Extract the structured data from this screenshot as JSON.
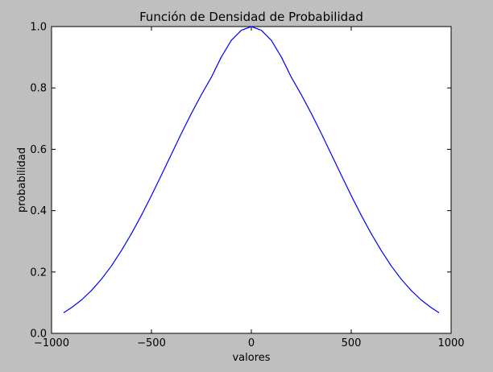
{
  "chart_data": {
    "type": "line",
    "title": "Función de Densidad de Probabilidad",
    "xlabel": "valores",
    "ylabel": "probabilidad",
    "xlim": [
      -1000,
      1000
    ],
    "ylim": [
      0.0,
      1.0
    ],
    "xticks": [
      -1000,
      -500,
      0,
      500,
      1000
    ],
    "xtick_labels": [
      "−1000",
      "−500",
      "0",
      "500",
      "1000"
    ],
    "yticks": [
      0.0,
      0.2,
      0.4,
      0.6,
      0.8,
      1.0
    ],
    "ytick_labels": [
      "0.0",
      "0.2",
      "0.4",
      "0.6",
      "0.8",
      "1.0"
    ],
    "grid": false,
    "legend": "none",
    "colors": {
      "background": "#bfbfbf",
      "plot_area": "#ffffff",
      "line": "#0000ff"
    },
    "series": [
      {
        "x": [
          -940,
          -900,
          -850,
          -800,
          -750,
          -700,
          -650,
          -600,
          -550,
          -500,
          -450,
          -400,
          -350,
          -300,
          -250,
          -200,
          -150,
          -100,
          -50,
          0,
          50,
          100,
          150,
          200,
          250,
          300,
          350,
          400,
          450,
          500,
          550,
          600,
          650,
          700,
          750,
          800,
          850,
          900,
          940
        ],
        "y": [
          0.067,
          0.084,
          0.109,
          0.14,
          0.177,
          0.22,
          0.27,
          0.325,
          0.385,
          0.449,
          0.516,
          0.584,
          0.652,
          0.717,
          0.778,
          0.835,
          0.901,
          0.955,
          0.988,
          1.0,
          0.988,
          0.955,
          0.901,
          0.835,
          0.778,
          0.717,
          0.652,
          0.584,
          0.516,
          0.449,
          0.385,
          0.325,
          0.27,
          0.22,
          0.177,
          0.14,
          0.109,
          0.084,
          0.067
        ]
      }
    ]
  }
}
